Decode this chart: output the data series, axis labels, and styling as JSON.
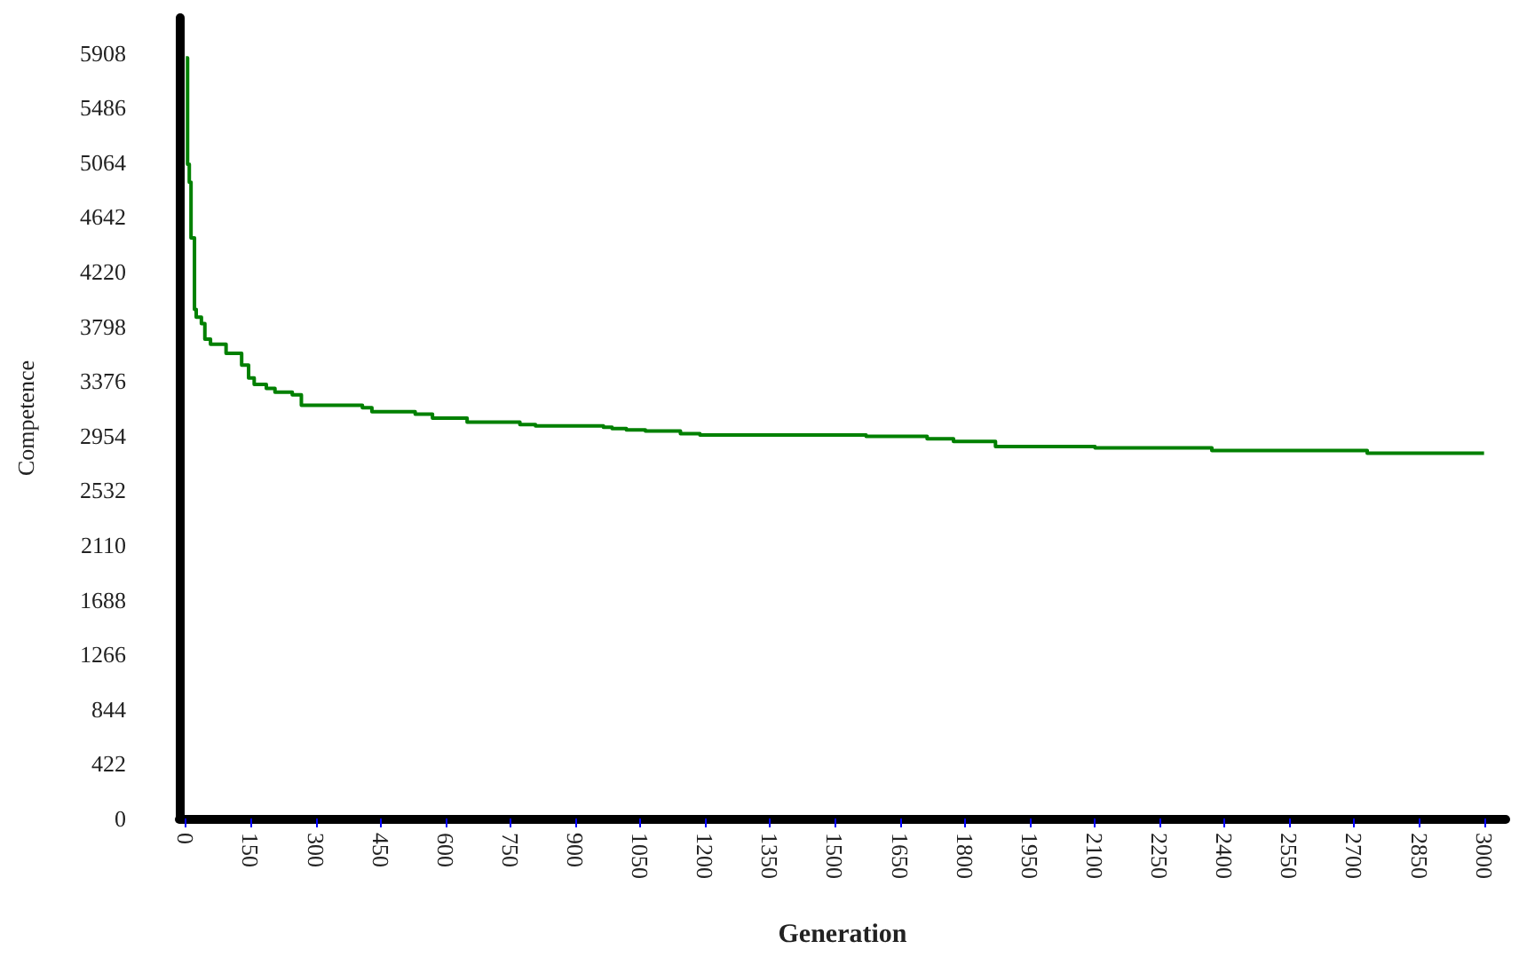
{
  "chart_data": {
    "type": "step",
    "xlabel": "Generation",
    "ylabel": "Competence",
    "grid": false,
    "marker": "none",
    "line_style": "solid",
    "xlim": [
      -15,
      3050
    ],
    "ylim": [
      0,
      6180
    ],
    "xticks": [
      0,
      150,
      300,
      450,
      600,
      750,
      900,
      1050,
      1200,
      1350,
      1500,
      1650,
      1800,
      1950,
      2100,
      2250,
      2400,
      2550,
      2700,
      2850,
      3000
    ],
    "yticks": [
      0,
      422,
      844,
      1266,
      1688,
      2110,
      2532,
      2954,
      3376,
      3798,
      4220,
      4642,
      5064,
      5486,
      5908
    ],
    "series": [
      {
        "color": "#008000",
        "x": [
          0,
          4,
          8,
          12,
          20,
          24,
          36,
          44,
          57,
          93,
          129,
          145,
          158,
          186,
          206,
          246,
          267,
          408,
          430,
          530,
          570,
          650,
          772,
          808,
          965,
          985,
          1018,
          1062,
          1143,
          1188,
          1572,
          1713,
          1774,
          1871,
          2101,
          2371,
          2730,
          3000
        ],
        "values": [
          5870,
          5050,
          4910,
          4480,
          3930,
          3870,
          3820,
          3700,
          3660,
          3590,
          3500,
          3400,
          3350,
          3320,
          3290,
          3270,
          3190,
          3170,
          3140,
          3120,
          3090,
          3060,
          3040,
          3030,
          3020,
          3010,
          3000,
          2990,
          2970,
          2960,
          2950,
          2930,
          2910,
          2870,
          2860,
          2840,
          2820,
          2820
        ]
      }
    ]
  }
}
